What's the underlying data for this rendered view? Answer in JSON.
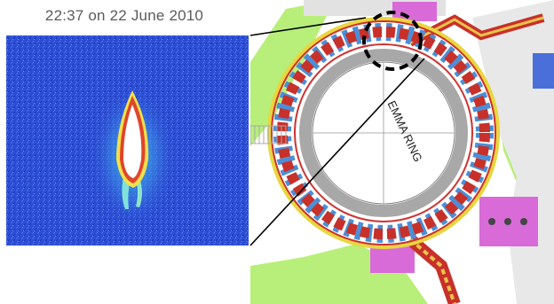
{
  "caption": "22:37 on 22 June 2010",
  "ring_label": "EMMA RING",
  "colors": {
    "beam_background": "#2d4fd6",
    "beam_core": "#ffffff",
    "magnet_red": "#c8302a",
    "magnet_blue": "#4a8fd8",
    "ring_outline": "#d03030",
    "floor_green": "#b8ef7a",
    "rack_magenta": "#d86bd8",
    "concrete_gray": "#bdbdbd",
    "highlight_circle": "#000000"
  }
}
